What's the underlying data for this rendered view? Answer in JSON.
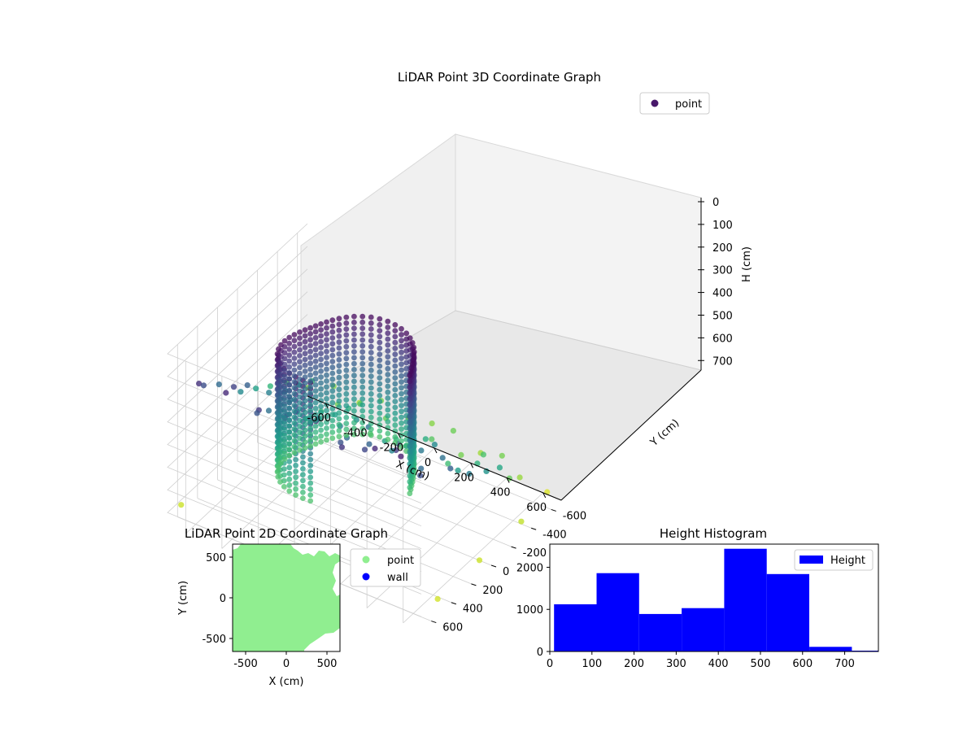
{
  "chart_data": [
    {
      "id": "lidar-3d",
      "type": "scatter",
      "title": "LiDAR Point 3D Coordinate Graph",
      "xlabel": "X (cm)",
      "ylabel": "Y (cm)",
      "zlabel": "H (cm)",
      "xlim": [
        -700,
        700
      ],
      "ylim": [
        -700,
        700
      ],
      "zlim": [
        0,
        760
      ],
      "z_inverted": true,
      "x_ticks": [
        -600,
        -400,
        -200,
        0,
        200,
        400,
        600
      ],
      "y_ticks": [
        -600,
        -400,
        -200,
        0,
        200,
        400,
        600
      ],
      "z_ticks": [
        0,
        100,
        200,
        300,
        400,
        500,
        600,
        700
      ],
      "colormap": "viridis",
      "grid": true,
      "legend": {
        "position": "upper-right",
        "entries": [
          {
            "label": "point",
            "color": "#48186a"
          }
        ]
      },
      "series": [
        {
          "name": "point",
          "description": "Sampled points: floor ring near the top, dense curved wall columns, far-field scattered points",
          "points": [
            [
              -620,
              -560,
              640
            ],
            [
              -500,
              -600,
              610
            ],
            [
              -380,
              -640,
              660
            ],
            [
              -250,
              -620,
              600
            ],
            [
              -120,
              -660,
              650
            ],
            [
              20,
              -640,
              620
            ],
            [
              160,
              -600,
              590
            ],
            [
              300,
              -620,
              650
            ],
            [
              440,
              -580,
              600
            ],
            [
              560,
              -540,
              640
            ],
            [
              -650,
              -400,
              560
            ],
            [
              -520,
              -420,
              520
            ],
            [
              -400,
              -460,
              600
            ],
            [
              -260,
              -430,
              540
            ],
            [
              -140,
              -470,
              580
            ],
            [
              0,
              -450,
              520
            ],
            [
              140,
              -420,
              560
            ],
            [
              280,
              -460,
              600
            ],
            [
              420,
              -430,
              540
            ],
            [
              580,
              -400,
              580
            ],
            [
              -640,
              -220,
              500
            ],
            [
              -500,
              -250,
              460
            ],
            [
              -360,
              -220,
              520
            ],
            [
              -230,
              -260,
              480
            ],
            [
              -100,
              -240,
              540
            ],
            [
              60,
              -210,
              500
            ],
            [
              200,
              -250,
              470
            ],
            [
              340,
              -220,
              520
            ],
            [
              480,
              -260,
              490
            ],
            [
              620,
              -230,
              450
            ],
            [
              -620,
              -40,
              430
            ],
            [
              -470,
              -60,
              400
            ],
            [
              -330,
              -20,
              460
            ],
            [
              -200,
              -70,
              420
            ],
            [
              -60,
              -30,
              380
            ],
            [
              80,
              -60,
              440
            ],
            [
              220,
              -20,
              400
            ],
            [
              360,
              -50,
              360
            ],
            [
              500,
              -30,
              420
            ],
            [
              640,
              -60,
              390
            ],
            [
              -600,
              150,
              360
            ],
            [
              -460,
              120,
              330
            ],
            [
              -320,
              160,
              300
            ],
            [
              -180,
              130,
              350
            ],
            [
              -40,
              170,
              320
            ],
            [
              100,
              140,
              290
            ],
            [
              240,
              160,
              340
            ],
            [
              380,
              120,
              310
            ],
            [
              520,
              160,
              280
            ],
            [
              650,
              130,
              320
            ],
            [
              -620,
              330,
              260
            ],
            [
              -480,
              300,
              230
            ],
            [
              -340,
              340,
              280
            ],
            [
              -200,
              310,
              250
            ],
            [
              -60,
              350,
              220
            ],
            [
              80,
              320,
              270
            ],
            [
              220,
              350,
              240
            ],
            [
              360,
              310,
              210
            ],
            [
              500,
              340,
              260
            ],
            [
              640,
              300,
              230
            ],
            [
              -600,
              520,
              180
            ],
            [
              -450,
              490,
              150
            ],
            [
              -300,
              530,
              200
            ],
            [
              -150,
              500,
              170
            ],
            [
              0,
              540,
              140
            ],
            [
              150,
              510,
              190
            ],
            [
              300,
              540,
              160
            ],
            [
              450,
              500,
              130
            ],
            [
              600,
              530,
              180
            ],
            [
              -560,
              640,
              110
            ],
            [
              -400,
              660,
              90
            ],
            [
              -240,
              620,
              130
            ],
            [
              -80,
              650,
              100
            ],
            [
              80,
              630,
              70
            ],
            [
              240,
              660,
              120
            ],
            [
              400,
              620,
              90
            ],
            [
              560,
              650,
              60
            ],
            [
              650,
              -650,
              720
            ],
            [
              700,
              -300,
              690
            ],
            [
              690,
              100,
              700
            ],
            [
              680,
              500,
              710
            ],
            [
              -680,
              600,
              700
            ]
          ]
        }
      ]
    },
    {
      "id": "lidar-2d",
      "type": "scatter",
      "title": "LiDAR Point 2D Coordinate Graph",
      "xlabel": "X (cm)",
      "ylabel": "Y (cm)",
      "xlim": [
        -660,
        660
      ],
      "ylim": [
        -660,
        660
      ],
      "x_ticks": [
        -500,
        0,
        500
      ],
      "y_ticks": [
        -500,
        0,
        500
      ],
      "legend": {
        "position": "outside-right",
        "entries": [
          {
            "label": "point",
            "color": "#90ee90"
          },
          {
            "label": "wall",
            "color": "#0000ff"
          }
        ]
      },
      "fill_color": "#90ee90"
    },
    {
      "id": "height-histogram",
      "type": "bar",
      "title": "Height Histogram",
      "xlim": [
        0,
        780
      ],
      "ylim": [
        0,
        2550
      ],
      "x_ticks": [
        0,
        100,
        200,
        300,
        400,
        500,
        600,
        700
      ],
      "y_ticks": [
        0,
        1000,
        2000
      ],
      "bin_edges": [
        10,
        111,
        212,
        313,
        414,
        515,
        616,
        717,
        780
      ],
      "values": [
        1120,
        1860,
        890,
        1030,
        2440,
        1840,
        110,
        20
      ],
      "color": "#0000ff",
      "legend": {
        "position": "upper-right",
        "entries": [
          {
            "label": "Height",
            "color": "#0000ff"
          }
        ]
      }
    }
  ]
}
